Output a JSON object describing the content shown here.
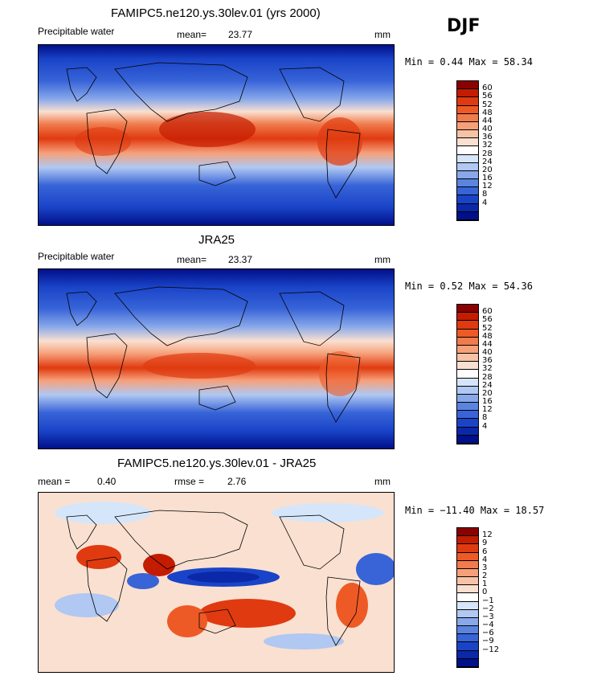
{
  "season": "DJF",
  "palettes": {
    "pw": [
      "#8b0000",
      "#c41c00",
      "#e03a10",
      "#ee5a26",
      "#f07b4c",
      "#f6a07a",
      "#f8c2a6",
      "#fae0d0",
      "#ffffff",
      "#d6e6fa",
      "#b0c8f2",
      "#88a8ea",
      "#5a84e0",
      "#3864d8",
      "#1a44c8",
      "#0a28a8",
      "#00108a"
    ],
    "diff": [
      "#8b0000",
      "#c41c00",
      "#e03a10",
      "#ee5a26",
      "#f07b4c",
      "#f6a07a",
      "#f8c2a6",
      "#fae0d0",
      "#ffffff",
      "#d6e6fa",
      "#b0c8f2",
      "#88a8ea",
      "#5a84e0",
      "#3864d8",
      "#1a44c8",
      "#0a28a8",
      "#00108a"
    ]
  },
  "panels": [
    {
      "title": "FAMIPC5.ne120.ys.30lev.01 (yrs 2000)",
      "left_label": "Precipitable water",
      "mid_label": "mean=",
      "mid_value": "23.77",
      "units": "mm",
      "minmax": "Min =   0.44 Max =  58.34",
      "ticks": [
        "60",
        "56",
        "52",
        "48",
        "44",
        "40",
        "36",
        "32",
        "28",
        "24",
        "20",
        "16",
        "12",
        "8",
        "4"
      ]
    },
    {
      "title": "JRA25",
      "left_label": "Precipitable water",
      "mid_label": "mean=",
      "mid_value": "23.37",
      "units": "mm",
      "minmax": "Min =   0.52 Max =  54.36",
      "ticks": [
        "60",
        "56",
        "52",
        "48",
        "44",
        "40",
        "36",
        "32",
        "28",
        "24",
        "20",
        "16",
        "12",
        "8",
        "4"
      ]
    },
    {
      "title": "FAMIPC5.ne120.ys.30lev.01 - JRA25",
      "left_label": "mean =",
      "left_value": "0.40",
      "mid_label": "rmse =",
      "mid_value": "2.76",
      "units": "mm",
      "minmax": "Min = −11.40 Max =  18.57",
      "ticks": [
        "12",
        "9",
        "6",
        "4",
        "3",
        "2",
        "1",
        "0",
        "−1",
        "−2",
        "−3",
        "−4",
        "−6",
        "−9",
        "−12"
      ]
    }
  ]
}
